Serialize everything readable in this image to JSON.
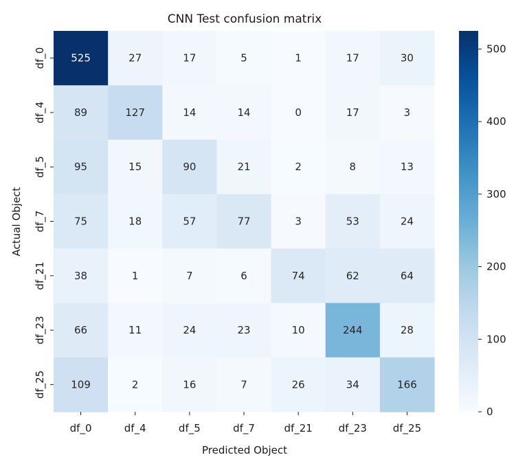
{
  "chart_data": {
    "type": "heatmap",
    "title": "CNN Test confusion matrix",
    "xlabel": "Predicted Object",
    "ylabel": "Actual Object",
    "x_categories": [
      "df_0",
      "df_4",
      "df_5",
      "df_7",
      "df_21",
      "df_23",
      "df_25"
    ],
    "y_categories": [
      "df_0",
      "df_4",
      "df_5",
      "df_7",
      "df_21",
      "df_23",
      "df_25"
    ],
    "values": [
      [
        525,
        27,
        17,
        5,
        1,
        17,
        30
      ],
      [
        89,
        127,
        14,
        14,
        0,
        17,
        3
      ],
      [
        95,
        15,
        90,
        21,
        2,
        8,
        13
      ],
      [
        75,
        18,
        57,
        77,
        3,
        53,
        24
      ],
      [
        38,
        1,
        7,
        6,
        74,
        62,
        64
      ],
      [
        66,
        11,
        24,
        23,
        10,
        244,
        28
      ],
      [
        109,
        2,
        16,
        7,
        26,
        34,
        166
      ]
    ],
    "colorscale": "Blues",
    "colorbar": {
      "min": 0,
      "max": 525,
      "ticks": [
        0,
        100,
        200,
        300,
        400,
        500
      ],
      "tick_labels": [
        "0",
        "100",
        "200",
        "300",
        "400",
        "500"
      ]
    },
    "grid": false
  }
}
